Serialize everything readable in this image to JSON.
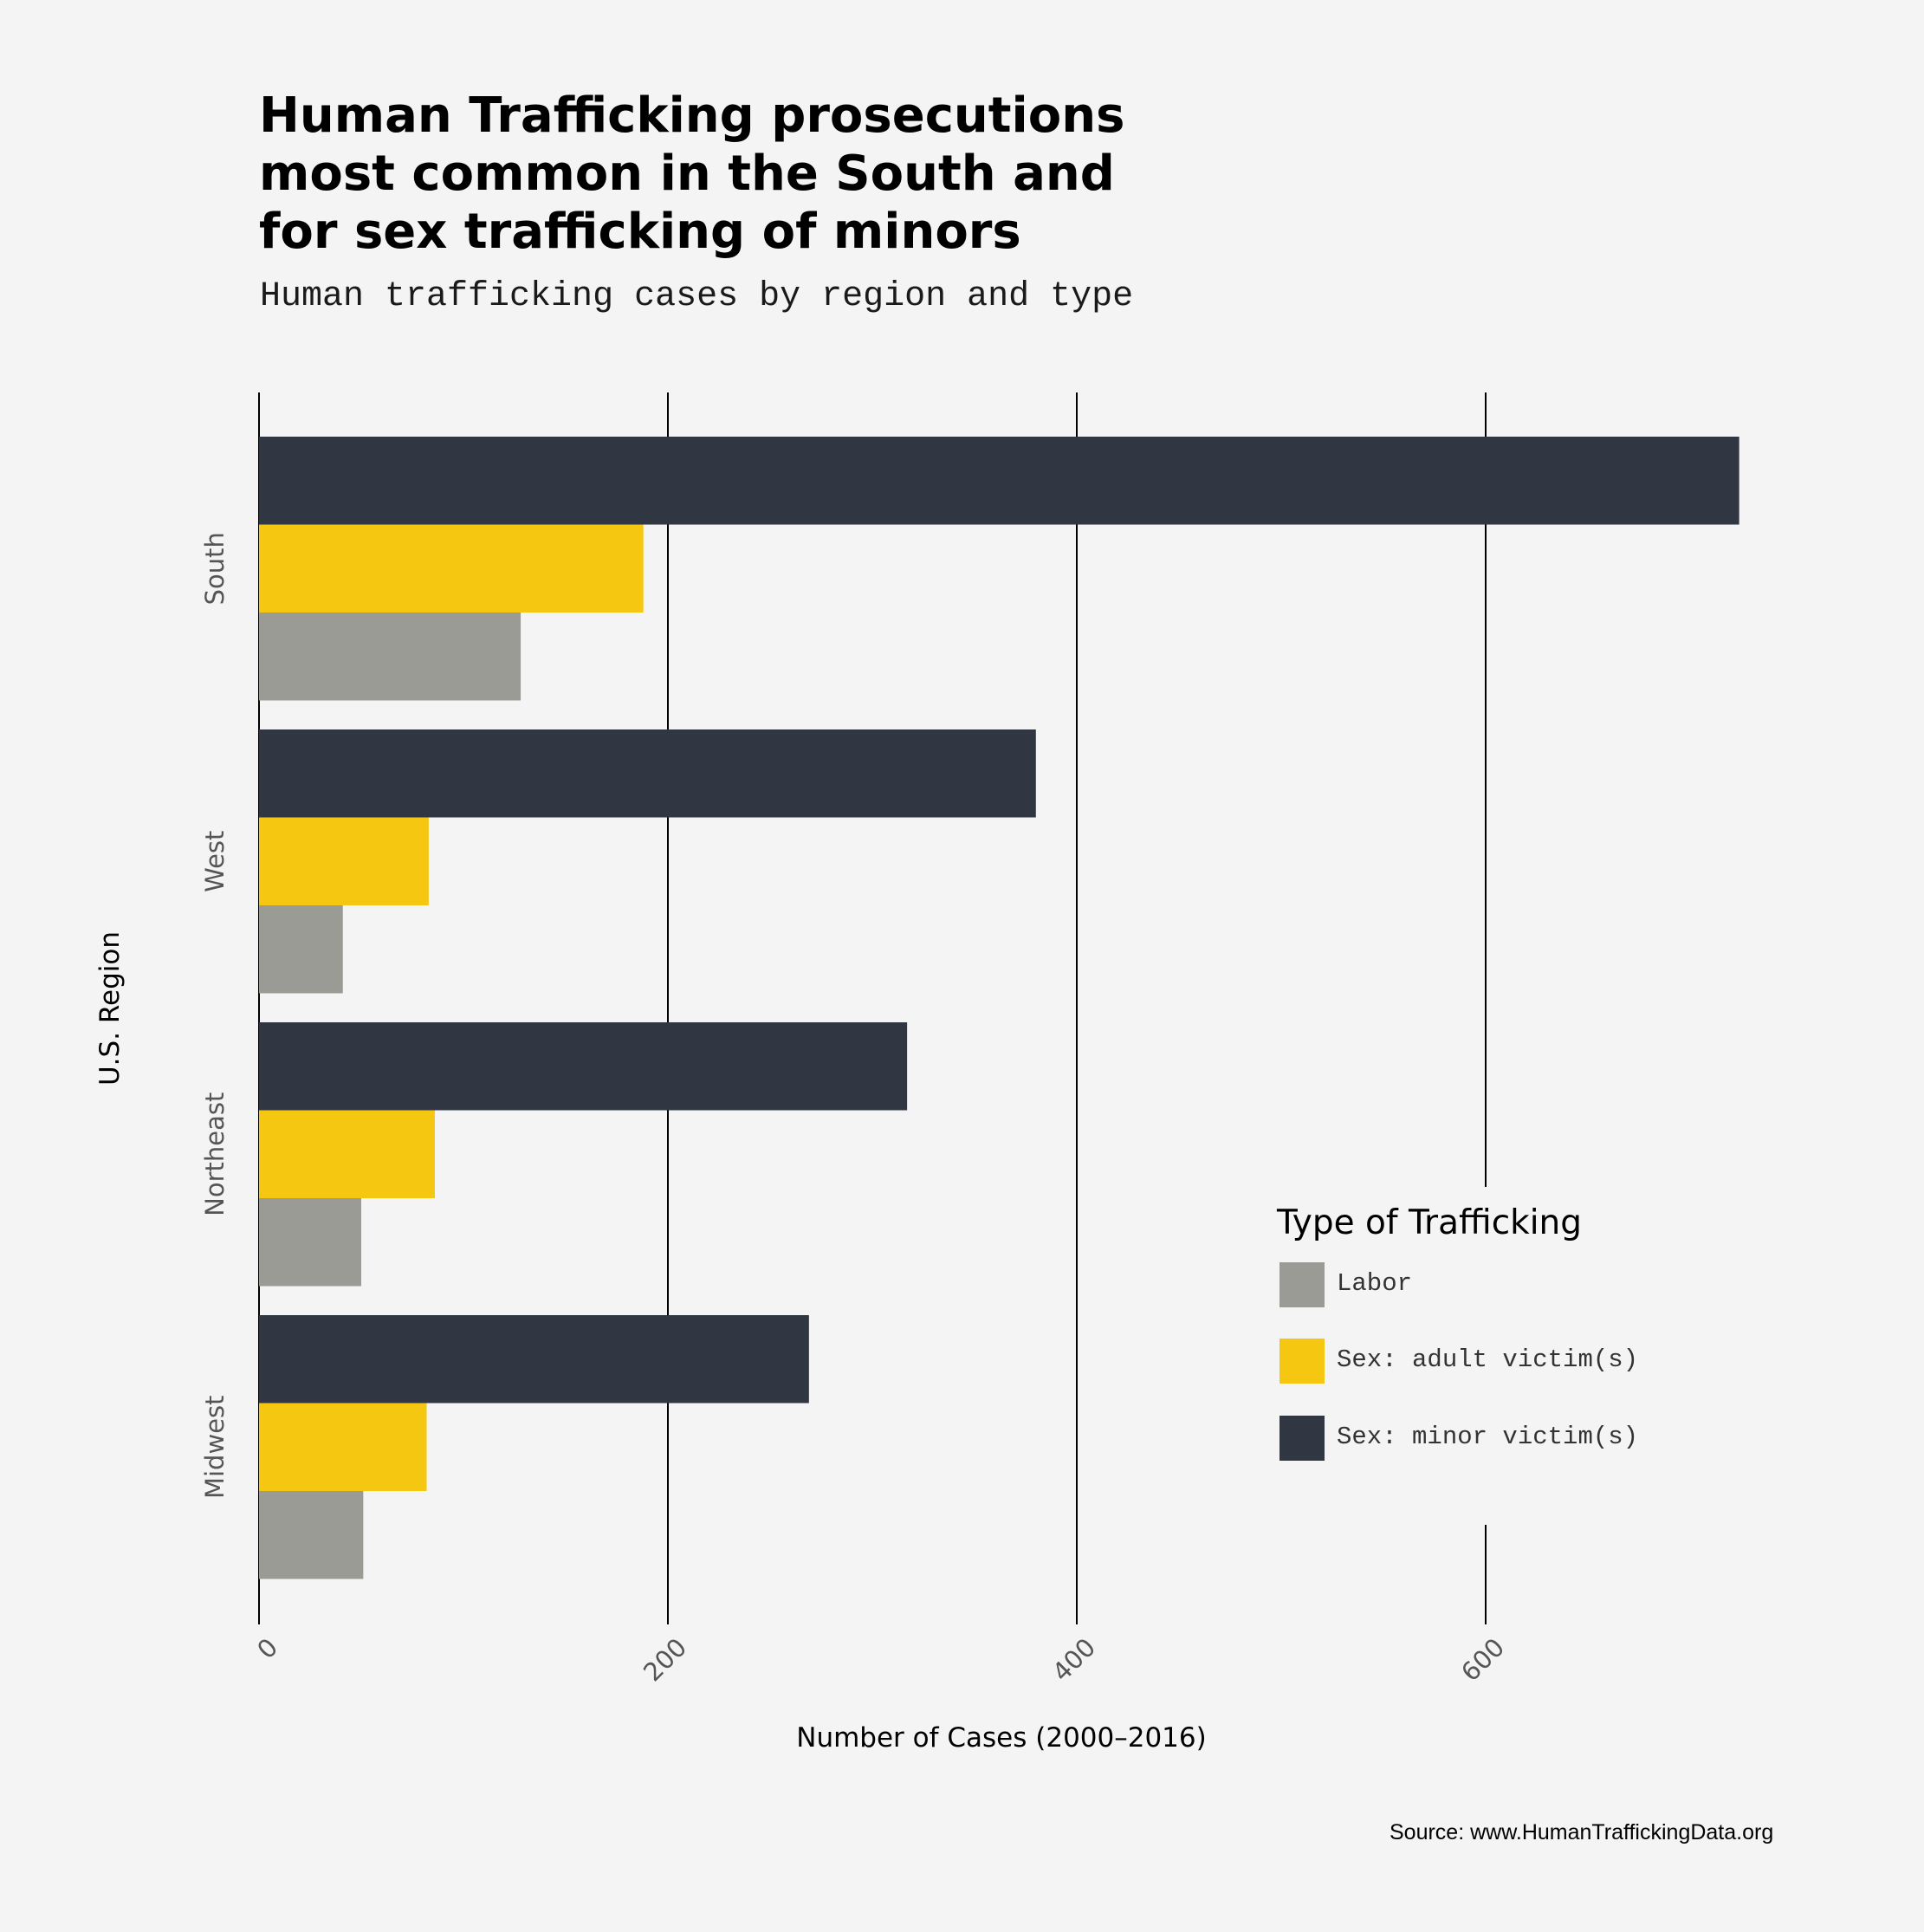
{
  "title": "Human Trafficking prosecutions\nmost common in the South and\nfor sex trafficking of minors",
  "subtitle": "Human trafficking cases by region and type",
  "source": "Source: www.HumanTraffickingData.org",
  "chart_data": {
    "type": "bar",
    "orientation": "horizontal",
    "xlabel": "Number of Cases (2000–2016)",
    "ylabel": "U.S. Region",
    "categories": [
      "South",
      "West",
      "Northeast",
      "Midwest"
    ],
    "x_ticks": [
      0,
      200,
      400,
      600
    ],
    "xlim": [
      0,
      730
    ],
    "grid": "vertical",
    "series": [
      {
        "name": "Sex: minor victim(s)",
        "color": "#303742",
        "values": [
          724,
          380,
          317,
          269
        ]
      },
      {
        "name": "Sex: adult victim(s)",
        "color": "#f5c710",
        "values": [
          188,
          83,
          86,
          82
        ]
      },
      {
        "name": "Labor",
        "color": "#9b9b95",
        "values": [
          128,
          41,
          50,
          51
        ]
      }
    ],
    "legend": {
      "title": "Type of Trafficking",
      "position": "bottom-right",
      "order": [
        "Labor",
        "Sex: adult victim(s)",
        "Sex: minor victim(s)"
      ]
    }
  }
}
